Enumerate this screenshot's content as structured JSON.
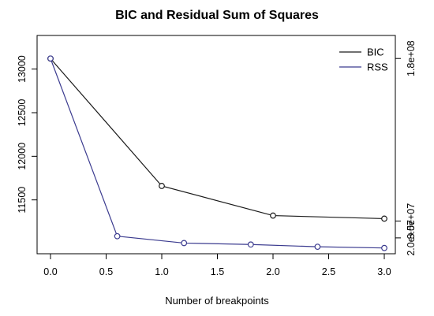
{
  "chart_data": {
    "type": "line",
    "title": "BIC and Residual Sum of Squares",
    "xlabel": "Number of breakpoints",
    "ylabel_left": "",
    "ylabel_right": "",
    "xlim": [
      0,
      3
    ],
    "x_ticks": [
      0.0,
      0.5,
      1.0,
      1.5,
      2.0,
      2.5,
      3.0
    ],
    "x_tick_labels": [
      "0.0",
      "0.5",
      "1.0",
      "1.5",
      "2.0",
      "2.5",
      "3.0"
    ],
    "ylim_left": [
      11000,
      13250
    ],
    "y_ticks_left": [
      11500,
      12000,
      12500,
      13000
    ],
    "y_tick_labels_left": [
      "11500",
      "12000",
      "12500",
      "13000"
    ],
    "ylim_right": [
      15000000,
      190000000
    ],
    "y_ticks_right": [
      20000000,
      35000000,
      180000000
    ],
    "y_tick_labels_right": [
      "2.0e+07",
      "3.5e+07",
      "1.8e+08"
    ],
    "grid": false,
    "legend_position": "top-right",
    "series": [
      {
        "name": "BIC",
        "color": "#1a1a1a",
        "axis": "left",
        "x": [
          0,
          1,
          2,
          3
        ],
        "y": [
          13120,
          11660,
          11320,
          11285
        ]
      },
      {
        "name": "RSS",
        "color": "#3b3b8f",
        "axis": "right",
        "x": [
          0,
          0.6,
          1.2,
          1.8,
          2.4,
          3.0
        ],
        "y": [
          180000000,
          21500000,
          15400000,
          14100000,
          12100000,
          11000000
        ]
      }
    ]
  }
}
